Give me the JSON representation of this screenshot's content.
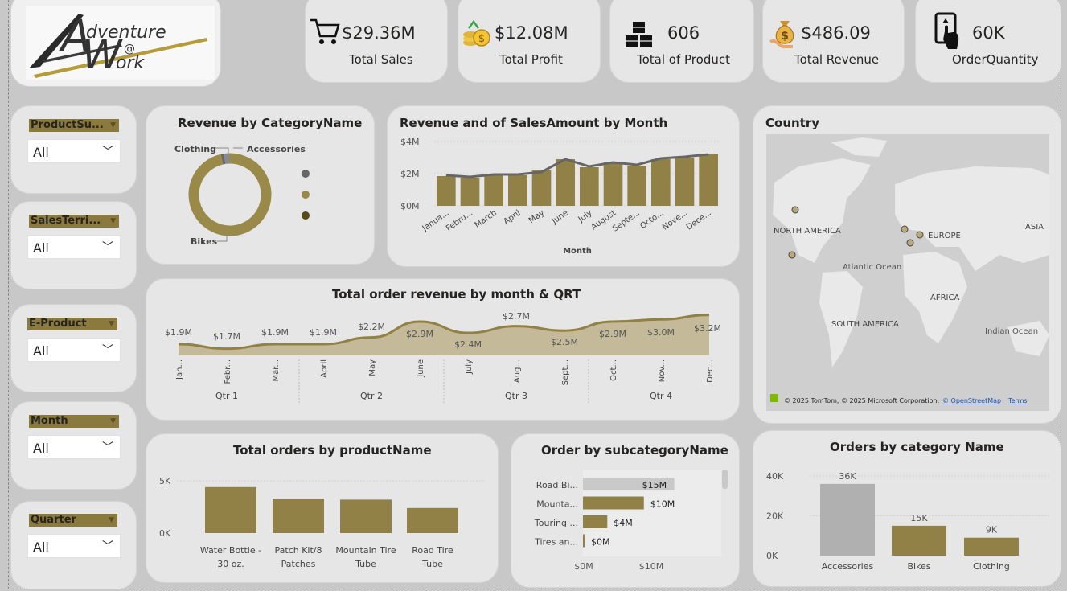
{
  "brand": {
    "logo_text": "Adventure Works"
  },
  "kpis": [
    {
      "value": "$29.36M",
      "label": "Total Sales",
      "icon": "cart-icon"
    },
    {
      "value": "$12.08M",
      "label": "Total Profit",
      "icon": "coins-icon"
    },
    {
      "value": "606",
      "label": "Total of Product",
      "icon": "boxes-icon"
    },
    {
      "value": "$486.09",
      "label": "Total Revenue",
      "icon": "money-bag-icon"
    },
    {
      "value": "60K",
      "label": "OrderQuantity",
      "icon": "phone-tap-icon"
    }
  ],
  "slicers": [
    {
      "title": "ProductSu...",
      "value": "All"
    },
    {
      "title": "SalesTerri...",
      "value": "All"
    },
    {
      "title": "E-Product",
      "value": "All"
    },
    {
      "title": "Month",
      "value": "All"
    },
    {
      "title": "Quarter",
      "value": "All"
    }
  ],
  "titles": {
    "donut": "Revenue by CategoryName",
    "combo": "Revenue and of SalesAmount by Month",
    "area": "Total order revenue by month & QRT",
    "map": "Country",
    "products": "Total orders by productName",
    "subcat": "Order by subcategoryName",
    "category": "Orders by category Name"
  },
  "map": {
    "labels": [
      "NORTH AMERICA",
      "EUROPE",
      "ASIA",
      "Atlantic Ocean",
      "AFRICA",
      "SOUTH AMERICA",
      "Indian Ocean"
    ],
    "copyright": "© 2025 TomTom, © 2025 Microsoft Corporation,",
    "osm": "© OpenStreetMap",
    "terms": "Terms"
  },
  "colors": {
    "gold": "#918146",
    "gold_dark": "#6b5a1f",
    "gold_mid": "#9a8a49",
    "grey_bar": "#b0b0b0",
    "line": "#666666"
  },
  "chart_data": [
    {
      "type": "pie",
      "title": "Revenue by CategoryName",
      "categories": [
        "Bikes",
        "Clothing",
        "Accessories"
      ],
      "values": [
        28.3,
        0.34,
        0.7
      ],
      "legend": "right"
    },
    {
      "type": "bar",
      "title": "Revenue and of SalesAmount by Month",
      "xlabel": "Month",
      "categories": [
        "Janua...",
        "Febru...",
        "March",
        "April",
        "May",
        "June",
        "July",
        "August",
        "Septe...",
        "Octo...",
        "Nove...",
        "Dece..."
      ],
      "yticks": [
        "$4M",
        "$2M",
        "$0M"
      ],
      "ylim": [
        0,
        4
      ],
      "series": [
        {
          "type": "bar",
          "values": [
            1.85,
            1.75,
            1.9,
            1.9,
            2.2,
            2.9,
            2.4,
            2.7,
            2.5,
            2.9,
            3.0,
            3.2
          ]
        },
        {
          "type": "line",
          "values": [
            1.9,
            1.8,
            1.95,
            1.95,
            2.1,
            2.9,
            2.45,
            2.7,
            2.55,
            2.95,
            3.05,
            3.2
          ]
        }
      ]
    },
    {
      "type": "area",
      "title": "Total order revenue by month & QRT",
      "categories": [
        "Jan...",
        "Febr...",
        "Mar...",
        "April",
        "May",
        "June",
        "July",
        "Aug...",
        "Sept...",
        "Oct...",
        "Nov...",
        "Dec..."
      ],
      "quarters": [
        "Qtr 1",
        "Qtr 2",
        "Qtr 3",
        "Qtr 4"
      ],
      "values": [
        1.9,
        1.7,
        1.9,
        1.9,
        2.2,
        2.9,
        2.4,
        2.7,
        2.5,
        2.9,
        3.0,
        3.2
      ],
      "labels": [
        "$1.9M",
        "$1.7M",
        "$1.9M",
        "$1.9M",
        "$2.2M",
        "$2.9M",
        "$2.4M",
        "$2.7M",
        "$2.5M",
        "$2.9M",
        "$3.0M",
        "$3.2M"
      ]
    },
    {
      "type": "bar",
      "title": "Total orders by productName",
      "categories": [
        "Water Bottle - 30 oz.",
        "Patch Kit/8 Patches",
        "Mountain Tire Tube",
        "Road Tire Tube"
      ],
      "values": [
        4400,
        3300,
        3200,
        2400
      ],
      "yticks": [
        "5K",
        "0K"
      ],
      "ylim": [
        0,
        5000
      ]
    },
    {
      "type": "bar",
      "orientation": "horizontal",
      "title": "Order by subcategoryName",
      "categories": [
        "Road Bi...",
        "Mounta...",
        "Touring ...",
        "Tires an..."
      ],
      "values": [
        15,
        10,
        4,
        0.2
      ],
      "labels": [
        "$15M",
        "$10M",
        "$4M",
        "$0M"
      ],
      "xticks": [
        "$0M",
        "$10M"
      ],
      "xlim": [
        0,
        16.5
      ]
    },
    {
      "type": "bar",
      "title": "Orders by category Name",
      "categories": [
        "Accessories",
        "Bikes",
        "Clothing"
      ],
      "values": [
        36,
        15,
        9
      ],
      "labels": [
        "36K",
        "15K",
        "9K"
      ],
      "yticks": [
        "40K",
        "20K",
        "0K"
      ],
      "ylim": [
        0,
        40
      ]
    }
  ]
}
